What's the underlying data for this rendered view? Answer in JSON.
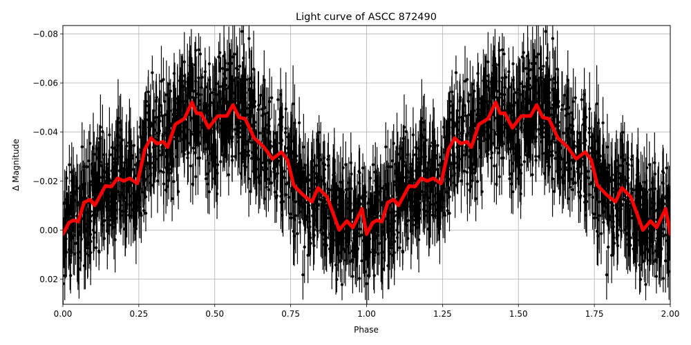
{
  "chart_data": {
    "type": "scatter",
    "title": "Light curve of ASCC 872490",
    "xlabel": "Phase",
    "ylabel": "Δ Magnitude",
    "xlim": [
      0.0,
      2.0
    ],
    "ylim": [
      0.0303,
      -0.0834
    ],
    "y_inverted": true,
    "grid": true,
    "legend": null,
    "x_ticks": [
      "0.00",
      "0.25",
      "0.50",
      "0.75",
      "1.00",
      "1.25",
      "1.50",
      "1.75",
      "2.00"
    ],
    "x_tick_values": [
      0.0,
      0.25,
      0.5,
      0.75,
      1.0,
      1.25,
      1.5,
      1.75,
      2.0
    ],
    "y_ticks": [
      "−0.08",
      "−0.06",
      "−0.04",
      "−0.02",
      "0.00",
      "0.02"
    ],
    "y_tick_values": [
      -0.08,
      -0.06,
      -0.04,
      -0.02,
      0.0,
      0.02
    ],
    "series": [
      {
        "name": "observations",
        "style": "black points with vertical error bars",
        "color": "#000000",
        "description": "Dense phase-folded photometry with error bars spanning roughly -0.08 to +0.03 magnitudes, repeated over two cycles"
      },
      {
        "name": "smoothed model",
        "style": "thick line",
        "color": "#ff0000",
        "x": [
          0.0,
          0.02,
          0.035,
          0.05,
          0.07,
          0.09,
          0.105,
          0.14,
          0.16,
          0.18,
          0.2,
          0.22,
          0.245,
          0.27,
          0.29,
          0.31,
          0.33,
          0.345,
          0.37,
          0.4,
          0.425,
          0.44,
          0.455,
          0.48,
          0.51,
          0.54,
          0.56,
          0.58,
          0.6,
          0.63,
          0.66,
          0.69,
          0.72,
          0.74,
          0.76,
          0.79,
          0.82,
          0.84,
          0.87,
          0.91,
          0.935,
          0.955,
          0.985,
          1.0,
          1.02,
          1.035,
          1.05,
          1.07,
          1.09,
          1.105,
          1.14,
          1.16,
          1.18,
          1.2,
          1.22,
          1.245,
          1.27,
          1.29,
          1.31,
          1.33,
          1.345,
          1.37,
          1.4,
          1.425,
          1.44,
          1.455,
          1.48,
          1.51,
          1.54,
          1.56,
          1.58,
          1.6,
          1.63,
          1.66,
          1.69,
          1.72,
          1.74,
          1.76,
          1.79,
          1.82,
          1.84,
          1.87,
          1.91,
          1.935,
          1.955,
          1.985,
          2.0
        ],
        "y": [
          0.0017,
          -0.003,
          -0.004,
          -0.0034,
          -0.0113,
          -0.0124,
          -0.01,
          -0.018,
          -0.0177,
          -0.0211,
          -0.02,
          -0.0211,
          -0.019,
          -0.033,
          -0.0375,
          -0.0352,
          -0.036,
          -0.0338,
          -0.0431,
          -0.0454,
          -0.0521,
          -0.0476,
          -0.0476,
          -0.0417,
          -0.0465,
          -0.0465,
          -0.051,
          -0.0459,
          -0.0454,
          -0.0375,
          -0.0341,
          -0.029,
          -0.0318,
          -0.0285,
          -0.0183,
          -0.0144,
          -0.0115,
          -0.0172,
          -0.0135,
          0.0,
          -0.0037,
          -0.001,
          -0.0087,
          0.0017,
          -0.003,
          -0.004,
          -0.0034,
          -0.0113,
          -0.0124,
          -0.01,
          -0.018,
          -0.0177,
          -0.0211,
          -0.02,
          -0.0211,
          -0.019,
          -0.033,
          -0.0375,
          -0.0352,
          -0.036,
          -0.0338,
          -0.0431,
          -0.0454,
          -0.0521,
          -0.0476,
          -0.0476,
          -0.0417,
          -0.0465,
          -0.0465,
          -0.051,
          -0.0459,
          -0.0454,
          -0.0375,
          -0.0341,
          -0.029,
          -0.0318,
          -0.0285,
          -0.0183,
          -0.0144,
          -0.0115,
          -0.0172,
          -0.0135,
          0.0,
          -0.0037,
          -0.001,
          -0.0087,
          0.0017
        ]
      }
    ]
  },
  "colors": {
    "background": "#ffffff",
    "points": "#000000",
    "model_line": "#ff0000",
    "grid": "#b0b0b0"
  }
}
